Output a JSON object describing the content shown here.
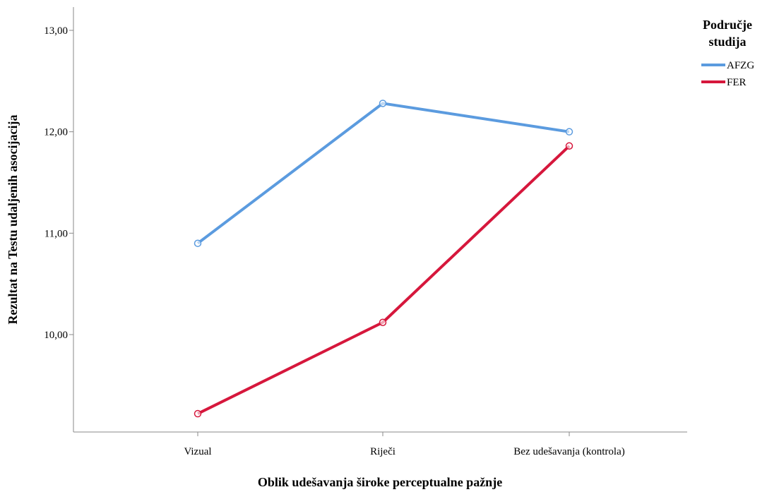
{
  "chart_data": {
    "type": "line",
    "title": "",
    "xlabel": "Oblik udešavanja široke perceptualne pažnje",
    "ylabel": "Rezultat na Testu udaljenih asocijacija",
    "categories": [
      "Vizual",
      "Riječi",
      "Bez udešavanja (kontrola)"
    ],
    "ylim": [
      9.0,
      13.2
    ],
    "y_ticks": [
      10,
      11,
      12,
      13
    ],
    "y_tick_labels": [
      "10,00",
      "11,00",
      "12,00",
      "13,00"
    ],
    "grid": false,
    "legend": {
      "title_line1": "Područje",
      "title_line2": "studija",
      "placement": "top-right"
    },
    "series": [
      {
        "name": "AFZG",
        "color": "#5b9bdf",
        "values": [
          10.9,
          12.28,
          12.0
        ]
      },
      {
        "name": "FER",
        "color": "#d6173c",
        "values": [
          9.22,
          10.12,
          11.86
        ]
      }
    ]
  }
}
